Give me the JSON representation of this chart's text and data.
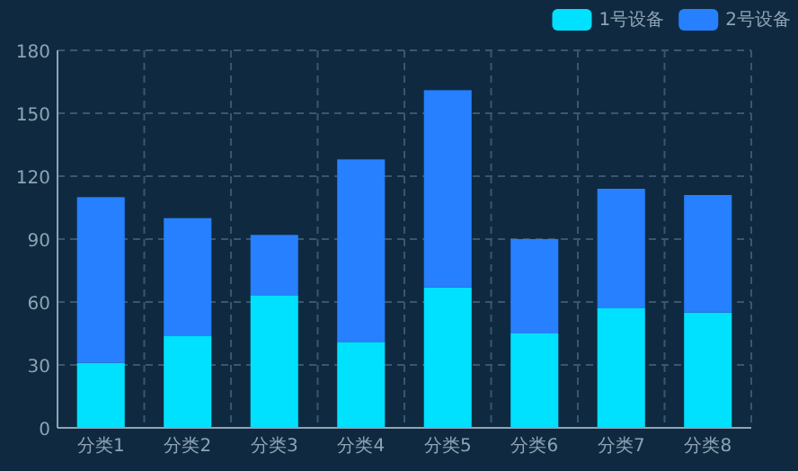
{
  "chart_data": {
    "type": "bar",
    "stacked": true,
    "categories": [
      "分类1",
      "分类2",
      "分类3",
      "分类4",
      "分类5",
      "分类6",
      "分类7",
      "分类8"
    ],
    "series": [
      {
        "name": "1号设备",
        "color": "#00e0ff",
        "values": [
          31,
          44,
          63,
          41,
          67,
          45,
          57,
          55
        ]
      },
      {
        "name": "2号设备",
        "color": "#2680ff",
        "values": [
          79,
          56,
          29,
          87,
          94,
          45,
          57,
          56
        ]
      }
    ],
    "ylim": [
      0,
      180
    ],
    "yticks": [
      0,
      30,
      60,
      90,
      120,
      150,
      180
    ],
    "grid": true,
    "legend": "top right"
  }
}
